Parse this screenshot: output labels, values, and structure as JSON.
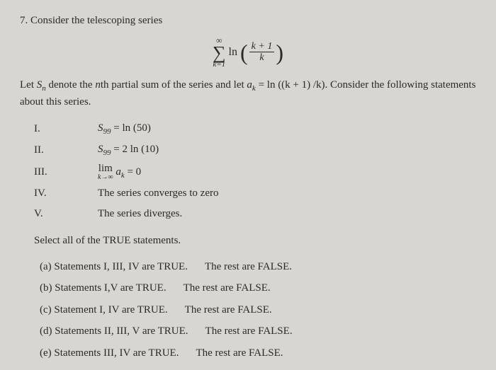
{
  "problem": {
    "number": "7.",
    "intro": "Consider the telescoping series",
    "sigma_top": "∞",
    "sigma_bottom": "k=1",
    "ln_label": "ln",
    "frac_num": "k + 1",
    "frac_den": "k",
    "context_1": "Let ",
    "context_Sn": "S",
    "context_Sn_sub": "n",
    "context_2": " denote the ",
    "context_nth": "n",
    "context_3": "th partial sum of the series and let ",
    "context_ak": "a",
    "context_ak_sub": "k",
    "context_4": " = ln ((k + 1) /k)",
    "context_5": ". Consider the following statements about this series."
  },
  "statements": {
    "I": {
      "label": "I.",
      "lhs": "S",
      "lhs_sub": "99",
      "eq": " = ln (50)"
    },
    "II": {
      "label": "II.",
      "lhs": "S",
      "lhs_sub": "99",
      "eq": " = 2 ln (10)"
    },
    "III": {
      "label": "III.",
      "lim_top": "lim",
      "lim_bot": "k→∞",
      "ak": " a",
      "ak_sub": "k",
      "eq": " = 0"
    },
    "IV": {
      "label": "IV.",
      "text": "The series converges to zero"
    },
    "V": {
      "label": "V.",
      "text": "The series diverges."
    }
  },
  "select": "Select all of the TRUE statements.",
  "options": {
    "a": {
      "label": "(a)",
      "text": " Statements I, III, IV are TRUE.",
      "rest": "The rest are FALSE."
    },
    "b": {
      "label": "(b)",
      "text": " Statements I,V are TRUE.",
      "rest": "The rest are FALSE."
    },
    "c": {
      "label": "(c)",
      "text": " Statement I, IV are TRUE.",
      "rest": "The rest are FALSE."
    },
    "d": {
      "label": "(d)",
      "text": " Statements II, III, V are TRUE.",
      "rest": "The rest are FALSE."
    },
    "e": {
      "label": "(e)",
      "text": " Statements III, IV are TRUE.",
      "rest": "The rest are FALSE."
    }
  }
}
